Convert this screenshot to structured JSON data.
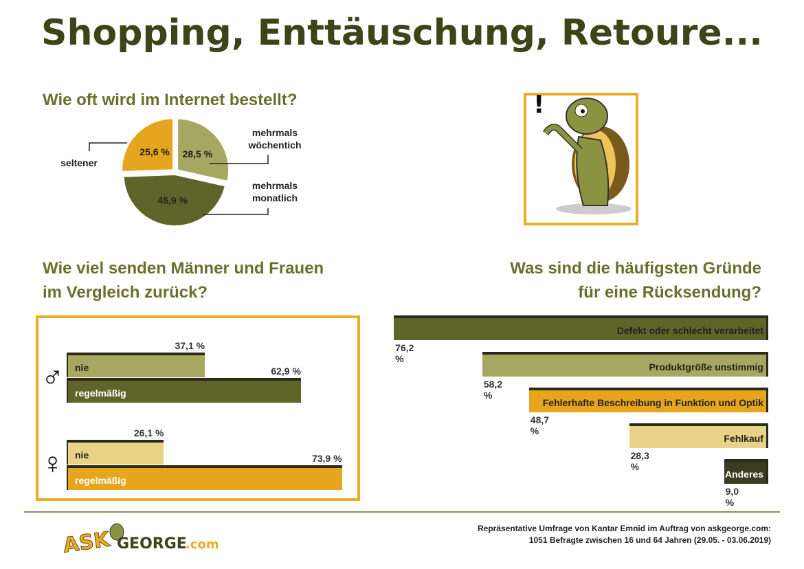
{
  "title": "Shopping, Enttäuschung, Retoure...",
  "colors": {
    "dark_olive": "#5f6529",
    "light_olive": "#a6a862",
    "orange": "#e5a51c",
    "tan": "#e8d286",
    "darkest": "#3b3a22"
  },
  "chart_data": [
    {
      "type": "pie",
      "title": "Wie oft wird im Internet bestellt?",
      "slices": [
        {
          "label": "mehrmals wöchentich",
          "label_lines": [
            "mehrmals",
            "wöchentich"
          ],
          "value": 28.5,
          "value_label": "28,5 %",
          "color": "#a6a862"
        },
        {
          "label": "mehrmals monatlich",
          "label_lines": [
            "mehrmals",
            "monatlich"
          ],
          "value": 45.9,
          "value_label": "45,9 %",
          "color": "#5f6529"
        },
        {
          "label": "seltener",
          "label_lines": [
            "seltener"
          ],
          "value": 25.6,
          "value_label": "25,6 %",
          "color": "#e5a51c"
        }
      ]
    },
    {
      "type": "bar",
      "title_lines": [
        "Wie viel senden Männer und Frauen",
        "im Vergleich zurück?"
      ],
      "groups": [
        {
          "name": "Männer",
          "symbol": "♂",
          "bars": [
            {
              "label": "nie",
              "value": 37.1,
              "value_label": "37,1 %",
              "color": "#a6a862"
            },
            {
              "label": "regelmäßig",
              "value": 62.9,
              "value_label": "62,9 %",
              "color": "#5f6529"
            }
          ]
        },
        {
          "name": "Frauen",
          "symbol": "♀",
          "bars": [
            {
              "label": "nie",
              "value": 26.1,
              "value_label": "26,1 %",
              "color": "#e8d286"
            },
            {
              "label": "regelmäßig",
              "value": 73.9,
              "value_label": "73,9 %",
              "color": "#e5a51c"
            }
          ]
        }
      ],
      "xlim": [
        0,
        100
      ]
    },
    {
      "type": "bar",
      "title_lines": [
        "Was sind die häufigsten Gründe",
        "für eine Rücksendung?"
      ],
      "categories": [
        "Defekt oder schlecht verarbeitet",
        "Produktgröße unstimmig",
        "Fehlerhafte Beschreibung in Funktion und Optik",
        "Fehlkauf",
        "Anderes"
      ],
      "values": [
        76.2,
        58.2,
        48.7,
        28.3,
        9.0
      ],
      "value_labels": [
        "76,2 %",
        "58,2 %",
        "48,7 %",
        "28,3 %",
        "9,0 %"
      ],
      "colors": [
        "#5f6529",
        "#a6a862",
        "#e5a51c",
        "#e8d286",
        "#3b3a22"
      ],
      "xlim": [
        0,
        100
      ]
    }
  ],
  "logo": {
    "text": "ASKGEORGE.com"
  },
  "footer": [
    "Repräsentative Umfrage von Kantar Emnid im Auftrag von askgeorge.com:",
    "1051 Befragte zwischen 16 und 64 Jahren (29.05. - 03.06.2019)"
  ]
}
